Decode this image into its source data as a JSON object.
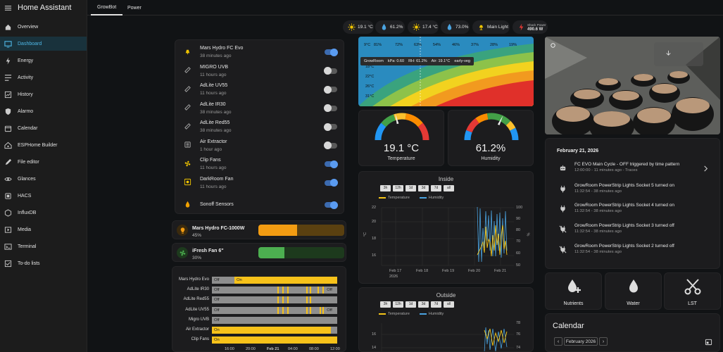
{
  "app": {
    "title": "Home Assistant"
  },
  "sidebar": {
    "items": [
      {
        "label": "Overview",
        "icon": "overview-icon"
      },
      {
        "label": "Dashboard",
        "icon": "dashboard-icon"
      },
      {
        "label": "Energy",
        "icon": "energy-icon"
      },
      {
        "label": "Activity",
        "icon": "activity-icon"
      },
      {
        "label": "History",
        "icon": "history-icon"
      },
      {
        "label": "Alarmo",
        "icon": "shield-icon"
      },
      {
        "label": "Calendar",
        "icon": "calendar-icon"
      },
      {
        "label": "ESPHome Builder",
        "icon": "esphome-icon"
      },
      {
        "label": "File editor",
        "icon": "file-editor-icon"
      },
      {
        "label": "Glances",
        "icon": "glances-icon"
      },
      {
        "label": "HACS",
        "icon": "hacs-icon"
      },
      {
        "label": "InfluxDB",
        "icon": "influxdb-icon"
      },
      {
        "label": "Media",
        "icon": "media-icon"
      },
      {
        "label": "Terminal",
        "icon": "terminal-icon"
      },
      {
        "label": "To-do lists",
        "icon": "todo-icon"
      }
    ]
  },
  "tabs": [
    {
      "label": "GrowBot"
    },
    {
      "label": "Power"
    }
  ],
  "badges": [
    {
      "value": "19.1 °C",
      "icon": "sun-icon",
      "color": "#f0c400"
    },
    {
      "value": "61.2%",
      "icon": "drop-icon",
      "color": "#4aa3e0"
    },
    {
      "value": "17.4 °C",
      "icon": "sun-icon",
      "color": "#f0c400"
    },
    {
      "value": "73.0%",
      "icon": "drop-icon",
      "color": "#4aa3e0"
    },
    {
      "value": "Main Light",
      "icon": "lamp-icon",
      "color": "#f0c400"
    },
    {
      "label": "Shack Power",
      "value": "490.6 W",
      "icon": "bolt-icon",
      "color": "#e53935"
    }
  ],
  "devices": [
    {
      "name": "Mars Hydro FC Evo",
      "ago": "38 minutes ago",
      "on": true
    },
    {
      "name": "MIGRO UVB",
      "ago": "11 hours ago",
      "on": false
    },
    {
      "name": "AdLite UV55",
      "ago": "11 hours ago",
      "on": false
    },
    {
      "name": "AdLite IR30",
      "ago": "38 minutes ago",
      "on": false
    },
    {
      "name": "AdLite Red55",
      "ago": "38 minutes ago",
      "on": false
    },
    {
      "name": "Air Extractor",
      "ago": "1 hour ago",
      "on": false
    },
    {
      "name": "Clip Fans",
      "ago": "11 hours ago",
      "on": true
    },
    {
      "name": "DarkRoom Fan",
      "ago": "11 hours ago",
      "on": true
    },
    {
      "name": "Sonoff Sensors",
      "ago": "",
      "on": true
    }
  ],
  "lights": [
    {
      "name": "Mars Hydro FC-1000W",
      "percent": "45%",
      "fraction": 0.45,
      "color": "#f39c12",
      "track": "#5a4010"
    },
    {
      "name": "iFresh Fan 6\"",
      "percent": "30%",
      "fraction": 0.3,
      "color": "#4caf50",
      "track": "#1d3a1d"
    }
  ],
  "timeline": {
    "rows": [
      {
        "label": "Mars Hydro Evo",
        "segs": [
          {
            "text": "Off",
            "s": 0,
            "e": 0.18,
            "c": "#8e8e8e"
          },
          {
            "text": "On",
            "s": 0.18,
            "e": 1,
            "c": "#f7c21a"
          }
        ]
      },
      {
        "label": "AdLite IR30",
        "segs": [
          {
            "text": "Off",
            "s": 0,
            "e": 0.9,
            "c": "#8e8e8e"
          },
          {
            "text": "Off",
            "s": 0.9,
            "e": 1,
            "c": "#8e8e8e"
          }
        ],
        "stripes": [
          0.52,
          0.56,
          0.6,
          0.75,
          0.78,
          0.84,
          0.88
        ]
      },
      {
        "label": "AdLite Red55",
        "segs": [
          {
            "text": "Off",
            "s": 0,
            "e": 1,
            "c": "#8e8e8e"
          }
        ],
        "stripes": [
          0.52,
          0.56,
          0.6,
          0.75,
          0.78
        ]
      },
      {
        "label": "AdLite UV55",
        "segs": [
          {
            "text": "Off",
            "s": 0,
            "e": 0.86,
            "c": "#8e8e8e"
          },
          {
            "text": "Off",
            "s": 0.9,
            "e": 1,
            "c": "#8e8e8e"
          }
        ],
        "stripes": [
          0.52,
          0.56,
          0.6,
          0.75,
          0.78,
          0.86,
          0.88
        ]
      },
      {
        "label": "Migro UVB",
        "segs": [
          {
            "text": "Off",
            "s": 0,
            "e": 1,
            "c": "#8e8e8e"
          }
        ]
      },
      {
        "label": "Air Extractor",
        "segs": [
          {
            "text": "On",
            "s": 0,
            "e": 0.95,
            "c": "#f7c21a"
          },
          {
            "text": "",
            "s": 0.95,
            "e": 1,
            "c": "#8e8e8e"
          }
        ]
      },
      {
        "label": "Clip Fans",
        "segs": [
          {
            "text": "On",
            "s": 0,
            "e": 1,
            "c": "#f7c21a"
          }
        ]
      }
    ],
    "ticks": [
      "16:00",
      "20:00",
      "Feb 21",
      "04:00",
      "08:00",
      "12:00"
    ]
  },
  "heatmap": {
    "header": [
      "9°C",
      "81%",
      "72%",
      "63%",
      "54%",
      "46%",
      "37%",
      "28%",
      "19%"
    ],
    "rows": [
      "18°C",
      "22°C",
      "26°C",
      "31°C"
    ],
    "tooltip": {
      "room": "GrowRoom",
      "kpa": "kPa: 0.60",
      "rh": "RH: 61.2%",
      "air": "Air: 19.1°C",
      "stage": "early-veg"
    }
  },
  "gauges": [
    {
      "value": "19.1 °C",
      "label": "Temperature",
      "fraction": 0.42
    },
    {
      "value": "61.2%",
      "label": "Humidity",
      "fraction": 0.64
    }
  ],
  "inside": {
    "title": "Inside",
    "ranges": [
      "3h",
      "12h",
      "1d",
      "3d",
      "7d",
      "all"
    ],
    "legend": [
      "Temperature",
      "Humidity"
    ],
    "yleft": [
      "22",
      "20",
      "18",
      "16"
    ],
    "yright": [
      "100",
      "90",
      "80",
      "70",
      "60",
      "50"
    ],
    "xticks": [
      "Feb 17",
      "Feb 18",
      "Feb 19",
      "Feb 20",
      "Feb 21"
    ],
    "xsub": "2026",
    "left_unit": "°C",
    "right_unit": "%"
  },
  "outside": {
    "title": "Outside",
    "ranges": [
      "3h",
      "12h",
      "1d",
      "3d",
      "7d",
      "all"
    ],
    "legend": [
      "Temperature",
      "Humidity"
    ],
    "yleft": [
      "16",
      "14"
    ],
    "yright": [
      "78",
      "76",
      "74"
    ]
  },
  "logbook": {
    "date": "February 21, 2026",
    "events": [
      {
        "title": "FC EVO Main Cycle - OFF triggered by time pattern",
        "sub": "12:00:00 - 11 minutes ago - Traces",
        "icon": "robot-icon"
      },
      {
        "title": "GrowRoom PowerStrip Lights Socket 5 turned on",
        "sub": "11:32:54 - 38 minutes ago",
        "icon": "plug-icon"
      },
      {
        "title": "GrowRoom PowerStrip Lights Socket 4 turned on",
        "sub": "11:32:54 - 38 minutes ago",
        "icon": "plug-icon"
      },
      {
        "title": "GrowRoom PowerStrip Lights Socket 3 turned off",
        "sub": "11:32:54 - 38 minutes ago",
        "icon": "plug-off-icon"
      },
      {
        "title": "GrowRoom PowerStrip Lights Socket 2 turned off",
        "sub": "11:32:54 - 38 minutes ago",
        "icon": "plug-off-icon"
      }
    ]
  },
  "quick": [
    {
      "label": "Nutrients",
      "icon": "nutrients-icon"
    },
    {
      "label": "Water",
      "icon": "water-icon"
    },
    {
      "label": "LST",
      "icon": "scissors-icon"
    }
  ],
  "calendar": {
    "title": "Calendar",
    "month": "February 2026"
  }
}
